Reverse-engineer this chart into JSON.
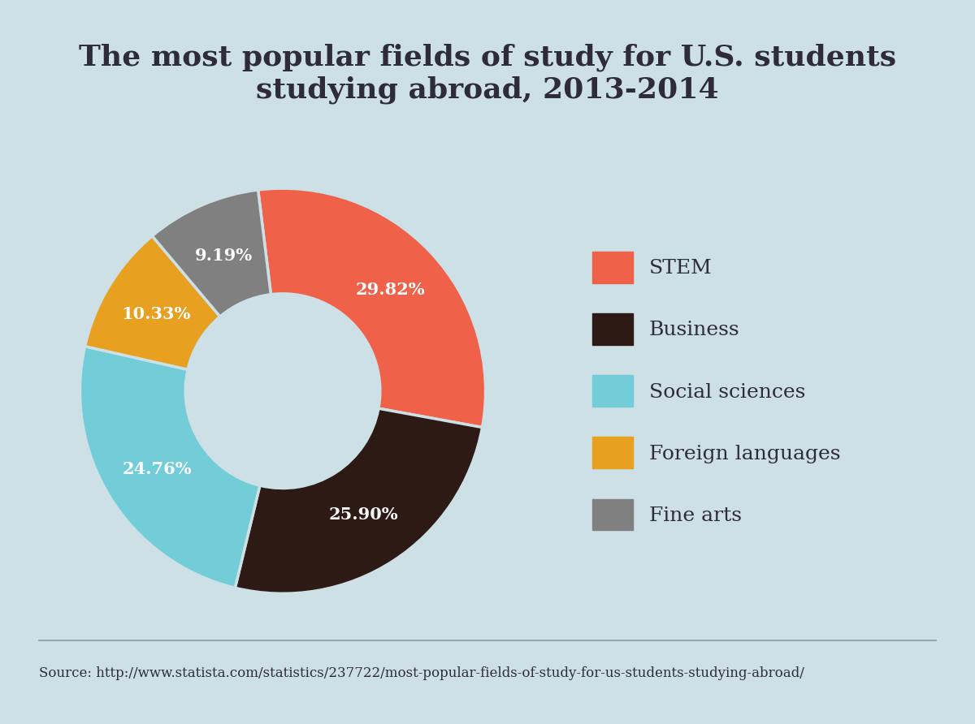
{
  "title": "The most popular fields of study for U.S. students\nstudying abroad, 2013-2014",
  "categories": [
    "STEM",
    "Business",
    "Social sciences",
    "Foreign languages",
    "Fine arts"
  ],
  "values": [
    29.82,
    25.9,
    24.76,
    10.33,
    9.19
  ],
  "colors": [
    "#F0614A",
    "#2E1A14",
    "#72CDD8",
    "#E8A020",
    "#808080"
  ],
  "background_color": "#CDE0E5",
  "inner_circle_color": "#D4E5EB",
  "title_color": "#2E2B3B",
  "source_text": "Source: http://www.statista.com/statistics/237722/most-popular-fields-of-study-for-us-students-studying-abroad/",
  "legend_labels": [
    "STEM",
    "Business",
    "Social sciences",
    "Foreign languages",
    "Fine arts"
  ],
  "title_fontsize": 26,
  "label_fontsize": 15,
  "source_fontsize": 12,
  "legend_fontsize": 18,
  "start_angle": 97
}
